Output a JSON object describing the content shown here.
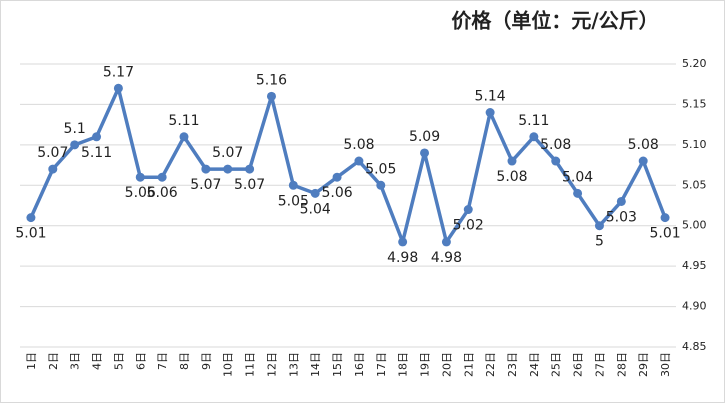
{
  "chart_data": {
    "type": "line",
    "title": "价格（单位：元/公斤）",
    "categories": [
      "1日",
      "2日",
      "3日",
      "4日",
      "5日",
      "6日",
      "7日",
      "8日",
      "9日",
      "10日",
      "11日",
      "12日",
      "13日",
      "14日",
      "15日",
      "16日",
      "17日",
      "18日",
      "19日",
      "20日",
      "21日",
      "22日",
      "23日",
      "24日",
      "25日",
      "26日",
      "27日",
      "28日",
      "29日",
      "30日"
    ],
    "series": [
      {
        "name": "价格",
        "color": "#4f7dbf",
        "values": [
          5.01,
          5.07,
          5.1,
          5.11,
          5.17,
          5.06,
          5.06,
          5.11,
          5.07,
          5.07,
          5.07,
          5.16,
          5.05,
          5.04,
          5.06,
          5.08,
          5.05,
          4.98,
          5.09,
          4.98,
          5.02,
          5.14,
          5.08,
          5.11,
          5.08,
          5.04,
          5,
          5.03,
          5.08,
          5.01
        ]
      }
    ],
    "ylim": [
      4.85,
      5.2
    ],
    "yticks": [
      {
        "value": 4.85,
        "label": "4.85"
      },
      {
        "value": 4.9,
        "label": "4.90"
      },
      {
        "value": 4.95,
        "label": "4.95"
      },
      {
        "value": 5,
        "label": "5.00"
      },
      {
        "value": 5.05,
        "label": "5.05"
      },
      {
        "value": 5.1,
        "label": "5.10"
      },
      {
        "value": 5.15,
        "label": "5.15"
      },
      {
        "value": 5.2,
        "label": "5.20"
      }
    ],
    "grid": true
  }
}
